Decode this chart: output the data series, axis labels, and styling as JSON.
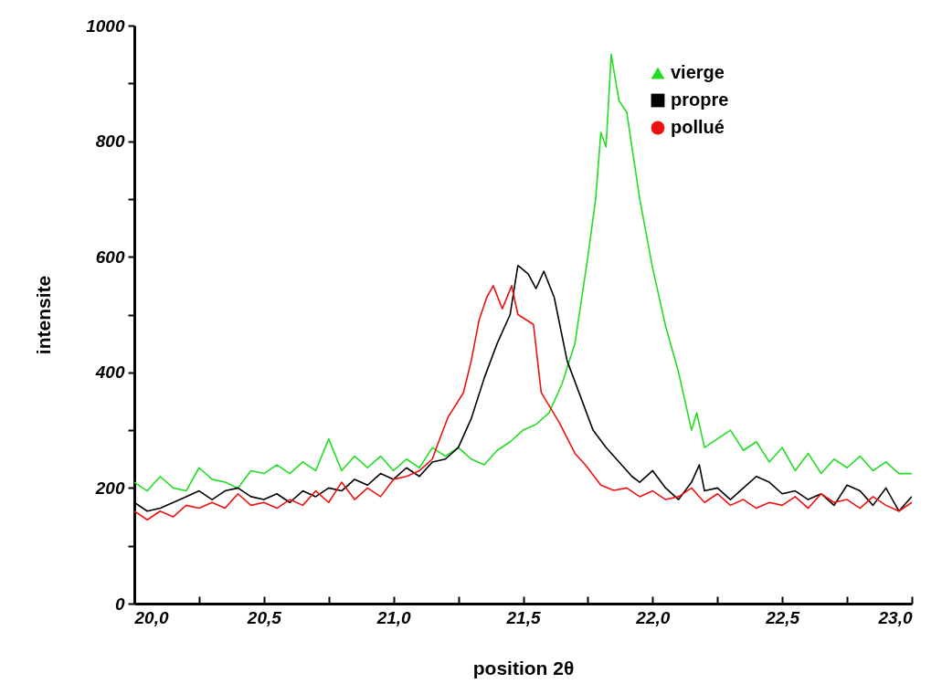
{
  "chart_data": {
    "type": "line",
    "xlabel": "position 2θ",
    "ylabel": "intensite",
    "xlim": [
      20,
      23
    ],
    "ylim": [
      0,
      1000
    ],
    "xticks": [
      {
        "value": 20,
        "label": "20,0"
      },
      {
        "value": 20.25,
        "label": null
      },
      {
        "value": 20.5,
        "label": "20,5"
      },
      {
        "value": 20.75,
        "label": null
      },
      {
        "value": 21,
        "label": "21,0"
      },
      {
        "value": 21.25,
        "label": null
      },
      {
        "value": 21.5,
        "label": "21,5"
      },
      {
        "value": 21.75,
        "label": null
      },
      {
        "value": 22,
        "label": "22,0"
      },
      {
        "value": 22.25,
        "label": null
      },
      {
        "value": 22.5,
        "label": "22,5"
      },
      {
        "value": 22.75,
        "label": null
      },
      {
        "value": 23,
        "label": "23,0"
      }
    ],
    "yticks": [
      0,
      {
        "value": 100,
        "label": null
      },
      200,
      {
        "value": 300,
        "label": null
      },
      400,
      {
        "value": 500,
        "label": null
      },
      600,
      {
        "value": 700,
        "label": null
      },
      800,
      {
        "value": 900,
        "label": null
      },
      1000
    ],
    "legend": "top right",
    "grid": false,
    "series": [
      {
        "name": "vierge",
        "color": "#22dd22",
        "x": [
          20,
          20.05,
          20.1,
          20.15,
          20.2,
          20.25,
          20.3,
          20.35,
          20.4,
          20.45,
          20.5,
          20.55,
          20.6,
          20.65,
          20.7,
          20.75,
          20.8,
          20.85,
          20.9,
          20.95,
          21,
          21.05,
          21.1,
          21.15,
          21.2,
          21.25,
          21.3,
          21.35,
          21.4,
          21.45,
          21.5,
          21.55,
          21.6,
          21.65,
          21.7,
          21.75,
          21.78,
          21.8,
          21.82,
          21.84,
          21.87,
          21.9,
          21.95,
          22,
          22.05,
          22.1,
          22.15,
          22.17,
          22.2,
          22.25,
          22.3,
          22.35,
          22.4,
          22.45,
          22.5,
          22.55,
          22.6,
          22.65,
          22.7,
          22.75,
          22.8,
          22.85,
          22.9,
          22.95,
          23
        ],
        "values": [
          210,
          195,
          220,
          200,
          195,
          235,
          215,
          210,
          200,
          230,
          225,
          240,
          225,
          245,
          230,
          285,
          230,
          255,
          235,
          255,
          230,
          250,
          235,
          270,
          255,
          270,
          250,
          240,
          265,
          280,
          300,
          310,
          330,
          380,
          450,
          600,
          700,
          815,
          790,
          950,
          870,
          850,
          700,
          580,
          480,
          400,
          300,
          330,
          270,
          285,
          300,
          265,
          280,
          245,
          270,
          230,
          260,
          225,
          250,
          235,
          255,
          230,
          245,
          225,
          225
        ]
      },
      {
        "name": "propre",
        "color": "#000000",
        "x": [
          20,
          20.05,
          20.1,
          20.15,
          20.2,
          20.25,
          20.3,
          20.35,
          20.4,
          20.45,
          20.5,
          20.55,
          20.6,
          20.65,
          20.7,
          20.75,
          20.8,
          20.85,
          20.9,
          20.95,
          21,
          21.05,
          21.1,
          21.15,
          21.2,
          21.25,
          21.3,
          21.35,
          21.4,
          21.45,
          21.48,
          21.52,
          21.55,
          21.58,
          21.62,
          21.67,
          21.72,
          21.77,
          21.82,
          21.88,
          21.92,
          21.95,
          22,
          22.05,
          22.1,
          22.15,
          22.18,
          22.2,
          22.25,
          22.3,
          22.35,
          22.4,
          22.45,
          22.5,
          22.55,
          22.6,
          22.65,
          22.7,
          22.75,
          22.8,
          22.85,
          22.9,
          22.95,
          23
        ],
        "values": [
          175,
          160,
          165,
          175,
          185,
          195,
          180,
          195,
          200,
          185,
          180,
          190,
          175,
          195,
          185,
          200,
          195,
          215,
          205,
          225,
          215,
          235,
          220,
          245,
          250,
          270,
          320,
          390,
          450,
          500,
          585,
          570,
          545,
          575,
          530,
          420,
          360,
          300,
          270,
          240,
          220,
          210,
          230,
          200,
          180,
          210,
          240,
          195,
          200,
          180,
          200,
          220,
          210,
          190,
          195,
          180,
          190,
          170,
          205,
          195,
          170,
          200,
          160,
          185
        ]
      },
      {
        "name": "pollué",
        "color": "#ee1111",
        "x": [
          20,
          20.05,
          20.1,
          20.15,
          20.2,
          20.25,
          20.3,
          20.35,
          20.4,
          20.45,
          20.5,
          20.55,
          20.6,
          20.65,
          20.7,
          20.75,
          20.8,
          20.85,
          20.9,
          20.95,
          21,
          21.05,
          21.1,
          21.15,
          21.17,
          21.21,
          21.27,
          21.3,
          21.33,
          21.36,
          21.385,
          21.42,
          21.456,
          21.48,
          21.54,
          21.57,
          21.64,
          21.7,
          21.74,
          21.8,
          21.85,
          21.9,
          21.95,
          22,
          22.05,
          22.1,
          22.15,
          22.2,
          22.25,
          22.3,
          22.35,
          22.4,
          22.45,
          22.5,
          22.55,
          22.6,
          22.65,
          22.7,
          22.75,
          22.8,
          22.85,
          22.9,
          22.95,
          23
        ],
        "values": [
          160,
          145,
          160,
          150,
          170,
          165,
          175,
          165,
          190,
          170,
          175,
          165,
          180,
          170,
          195,
          175,
          210,
          180,
          200,
          185,
          215,
          220,
          230,
          250,
          275,
          322,
          365,
          420,
          490,
          530,
          550,
          510,
          550,
          500,
          483,
          365,
          313,
          260,
          240,
          205,
          196,
          200,
          185,
          195,
          180,
          185,
          200,
          175,
          190,
          170,
          180,
          165,
          175,
          170,
          185,
          165,
          190,
          175,
          180,
          165,
          185,
          170,
          160,
          175
        ]
      }
    ]
  }
}
